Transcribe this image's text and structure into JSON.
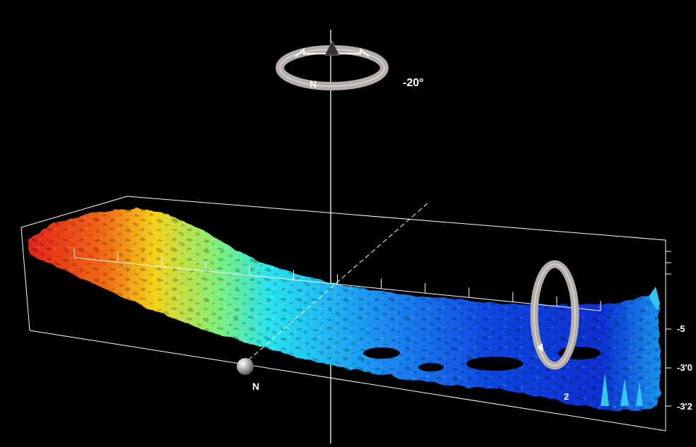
{
  "viewer": {
    "heading_readout": "-20°",
    "compass_north_label": "N",
    "ground_north_label": "N",
    "depth_labels": [
      "-3'0",
      "-3'2",
      "-5"
    ],
    "tilt_partial_label": "2"
  },
  "colors": {
    "background": "#000000",
    "bounding_box": "#ffffff",
    "ring": "#b5aeaa",
    "surface_high": "#e5221c",
    "surface_mid": "#28e3f0",
    "surface_low": "#0a2fcf"
  },
  "icons": {
    "heading_ring": "compass-heading-ring-icon",
    "tilt_ring": "tilt-ring-icon",
    "north_marker": "north-sphere-marker-icon"
  }
}
